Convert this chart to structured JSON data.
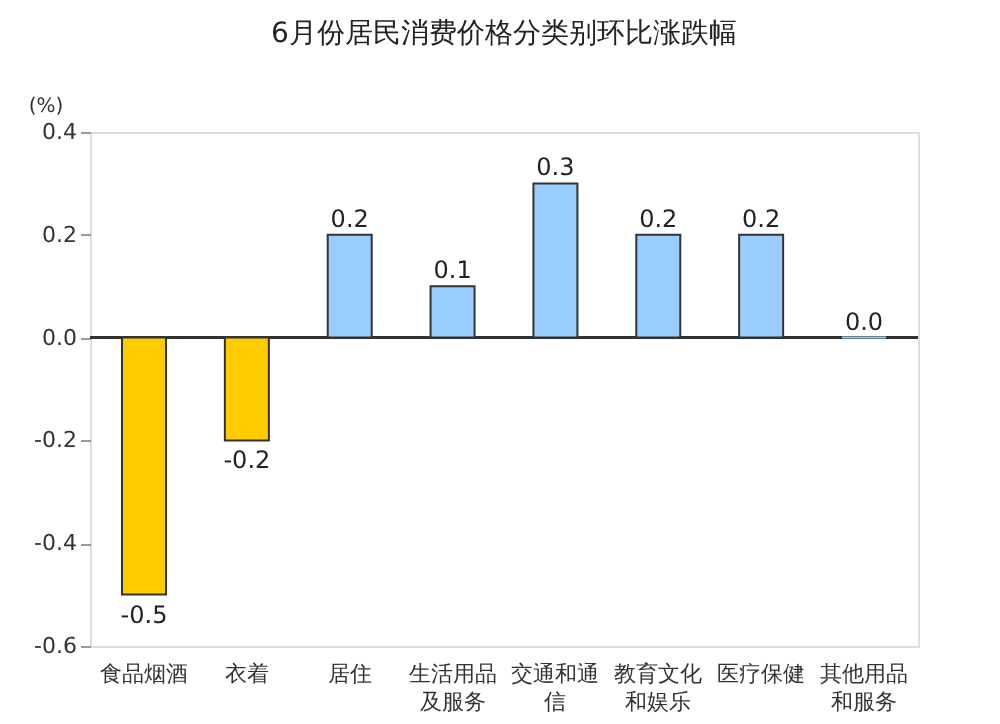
{
  "chart_data": {
    "type": "bar",
    "title": "6月份居民消费价格分类别环比涨跌幅",
    "ylabel": "(%)",
    "categories": [
      "食品烟酒",
      "衣着",
      "居住",
      "生活用品及服务",
      "交通和通信",
      "教育文化和娱乐",
      "医疗保健",
      "其他用品和服务"
    ],
    "values": [
      -0.5,
      -0.2,
      0.2,
      0.1,
      0.3,
      0.2,
      0.2,
      0.0
    ],
    "colors": [
      "#ffcc00",
      "#ffcc00",
      "#99ccff",
      "#99ccff",
      "#99ccff",
      "#99ccff",
      "#99ccff",
      "#99ccff"
    ],
    "value_labels": [
      "-0.5",
      "-0.2",
      "0.2",
      "0.1",
      "0.3",
      "0.2",
      "0.2",
      "0.0"
    ],
    "ylim": [
      -0.6,
      0.4
    ],
    "yticks": [
      -0.6,
      -0.4,
      -0.2,
      {
        "value": 0,
        "label": "0.0"
      },
      0.2,
      0.4
    ]
  }
}
